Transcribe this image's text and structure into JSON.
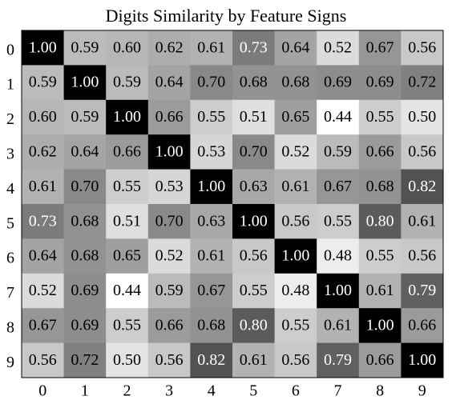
{
  "chart_data": {
    "type": "heatmap",
    "title": "Digits Similarity by Feature Signs",
    "x_categories": [
      "0",
      "1",
      "2",
      "3",
      "4",
      "5",
      "6",
      "7",
      "8",
      "9"
    ],
    "y_categories": [
      "0",
      "1",
      "2",
      "3",
      "4",
      "5",
      "6",
      "7",
      "8",
      "9"
    ],
    "colormap": "gray_r",
    "values": [
      [
        1.0,
        0.59,
        0.6,
        0.62,
        0.61,
        0.73,
        0.64,
        0.52,
        0.67,
        0.56
      ],
      [
        0.59,
        1.0,
        0.59,
        0.64,
        0.7,
        0.68,
        0.68,
        0.69,
        0.69,
        0.72
      ],
      [
        0.6,
        0.59,
        1.0,
        0.66,
        0.55,
        0.51,
        0.65,
        0.44,
        0.55,
        0.5
      ],
      [
        0.62,
        0.64,
        0.66,
        1.0,
        0.53,
        0.7,
        0.52,
        0.59,
        0.66,
        0.56
      ],
      [
        0.61,
        0.7,
        0.55,
        0.53,
        1.0,
        0.63,
        0.61,
        0.67,
        0.68,
        0.82
      ],
      [
        0.73,
        0.68,
        0.51,
        0.7,
        0.63,
        1.0,
        0.56,
        0.55,
        0.8,
        0.61
      ],
      [
        0.64,
        0.68,
        0.65,
        0.52,
        0.61,
        0.56,
        1.0,
        0.48,
        0.55,
        0.56
      ],
      [
        0.52,
        0.69,
        0.44,
        0.59,
        0.67,
        0.55,
        0.48,
        1.0,
        0.61,
        0.79
      ],
      [
        0.67,
        0.69,
        0.55,
        0.66,
        0.68,
        0.8,
        0.55,
        0.61,
        1.0,
        0.66
      ],
      [
        0.56,
        0.72,
        0.5,
        0.56,
        0.82,
        0.61,
        0.56,
        0.79,
        0.66,
        1.0
      ]
    ],
    "value_labels": [
      [
        "1.00",
        "0.59",
        "0.60",
        "0.62",
        "0.61",
        "0.73",
        "0.64",
        "0.52",
        "0.67",
        "0.56"
      ],
      [
        "0.59",
        "1.00",
        "0.59",
        "0.64",
        "0.70",
        "0.68",
        "0.68",
        "0.69",
        "0.69",
        "0.72"
      ],
      [
        "0.60",
        "0.59",
        "1.00",
        "0.66",
        "0.55",
        "0.51",
        "0.65",
        "0.44",
        "0.55",
        "0.50"
      ],
      [
        "0.62",
        "0.64",
        "0.66",
        "1.00",
        "0.53",
        "0.70",
        "0.52",
        "0.59",
        "0.66",
        "0.56"
      ],
      [
        "0.61",
        "0.70",
        "0.55",
        "0.53",
        "1.00",
        "0.63",
        "0.61",
        "0.67",
        "0.68",
        "0.82"
      ],
      [
        "0.73",
        "0.68",
        "0.51",
        "0.70",
        "0.63",
        "1.00",
        "0.56",
        "0.55",
        "0.80",
        "0.61"
      ],
      [
        "0.64",
        "0.68",
        "0.65",
        "0.52",
        "0.61",
        "0.56",
        "1.00",
        "0.48",
        "0.55",
        "0.56"
      ],
      [
        "0.52",
        "0.69",
        "0.44",
        "0.59",
        "0.67",
        "0.55",
        "0.48",
        "1.00",
        "0.61",
        "0.79"
      ],
      [
        "0.67",
        "0.69",
        "0.55",
        "0.66",
        "0.68",
        "0.80",
        "0.55",
        "0.61",
        "1.00",
        "0.66"
      ],
      [
        "0.56",
        "0.72",
        "0.50",
        "0.56",
        "0.82",
        "0.61",
        "0.56",
        "0.79",
        "0.66",
        "1.00"
      ]
    ]
  }
}
